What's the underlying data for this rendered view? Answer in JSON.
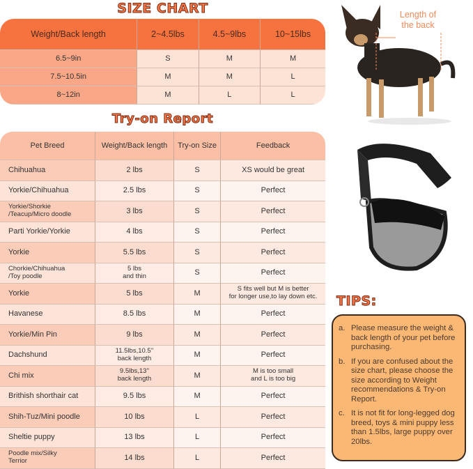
{
  "size_chart": {
    "title": "SIZE CHART",
    "headers": [
      "Weight/Back length",
      "2~4.5lbs",
      "4.5~9lbs",
      "10~15lbs"
    ],
    "rows": [
      [
        "6.5~9in",
        "S",
        "M",
        "M"
      ],
      [
        "7.5~10.5in",
        "M",
        "M",
        "L"
      ],
      [
        "8~12in",
        "M",
        "L",
        "L"
      ]
    ]
  },
  "try_on": {
    "title": "Try-on Report",
    "headers": [
      "Pet Breed",
      "Weight/Back length",
      "Try-on Size",
      "Feedback"
    ],
    "rows": [
      [
        "Chihuahua",
        "2 lbs",
        "S",
        "XS would be great"
      ],
      [
        "Yorkie/Chihuahua",
        "2.5 lbs",
        "S",
        "Perfect"
      ],
      [
        "Yorkie/Shorkie\n/Teacup/Micro doodle",
        "3 lbs",
        "S",
        "Perfect"
      ],
      [
        "Parti Yorkie/Yorkie",
        "4 lbs",
        "S",
        "Perfect"
      ],
      [
        "Yorkie",
        "5.5 lbs",
        "S",
        "Perfect"
      ],
      [
        "Chorkie/Chihuahua\n/Toy poodle",
        "5 lbs\nand thin",
        "S",
        "Perfect"
      ],
      [
        "Yorkie",
        "5 lbs",
        "M",
        "S fits well but M is better\nfor longer use,to lay down etc."
      ],
      [
        "Havanese",
        "8.5 lbs",
        "M",
        "Perfect"
      ],
      [
        "Yorkie/Min Pin",
        "9 lbs",
        "M",
        "Perfect"
      ],
      [
        "Dachshund",
        "11.5lbs,10.5''\nback length",
        "M",
        "Perfect"
      ],
      [
        "Chi mix",
        "9.5lbs,13''\nback length",
        "M",
        "M is too small\nand L is too big"
      ],
      [
        "Brithish shorthair cat",
        "9.5 lbs",
        "M",
        "Perfect"
      ],
      [
        "Shih-Tuz/Mini poodle",
        "10 lbs",
        "L",
        "Perfect"
      ],
      [
        "Sheltie puppy",
        "13 lbs",
        "L",
        "Perfect"
      ],
      [
        "Poodle mix/Silky\n Terrior",
        "14 lbs",
        "L",
        "Perfect"
      ]
    ]
  },
  "dog_annotation": "Length of the back",
  "tips": {
    "title": "TIPS:",
    "items": [
      {
        "letter": "a.",
        "text": "Please measure the weight & back length of your pet before purchasing."
      },
      {
        "letter": "b.",
        "text": "If you are confused about the size chart, please choose the size according to Weight recommendations & Try-on Report."
      },
      {
        "letter": "c.",
        "text": "It is not fit for long-legged dog breed, toys & mini puppy less than 1.5lbs, large puppy over 20lbs."
      }
    ]
  },
  "colors": {
    "accent": "#f6733f",
    "tips_bg": "#fbb874",
    "header_light": "#fbbfa5"
  }
}
